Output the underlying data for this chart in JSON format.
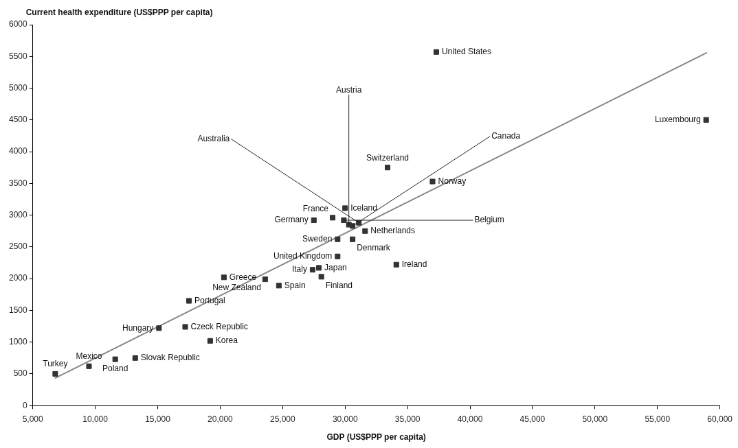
{
  "chart_data": {
    "type": "scatter",
    "xlabel": "GDP (US$PPP per capita)",
    "ylabel": "Current health expenditure (US$PPP per capita)",
    "xlim": [
      5000,
      60000
    ],
    "ylim": [
      0,
      6000
    ],
    "xticks": [
      {
        "value": 5000,
        "label": "5,000"
      },
      {
        "value": 10000,
        "label": "10,000"
      },
      {
        "value": 15000,
        "label": "15,000"
      },
      {
        "value": 20000,
        "label": "20,000"
      },
      {
        "value": 25000,
        "label": "25,000"
      },
      {
        "value": 30000,
        "label": "30,000"
      },
      {
        "value": 35000,
        "label": "35,000"
      },
      {
        "value": 40000,
        "label": "40,000"
      },
      {
        "value": 45000,
        "label": "45,000"
      },
      {
        "value": 50000,
        "label": "50,000"
      },
      {
        "value": 55000,
        "label": "55,000"
      },
      {
        "value": 60000,
        "label": "60,000"
      }
    ],
    "yticks": [
      0,
      500,
      1000,
      1500,
      2000,
      2500,
      3000,
      3500,
      4000,
      4500,
      5000,
      5500,
      6000
    ],
    "grid": false,
    "legend": false,
    "series": [
      {
        "type": "scatter",
        "marker": "square",
        "color": "#333333",
        "x": [
          6800,
          9500,
          11600,
          13200,
          15100,
          17200,
          19200,
          17500,
          20300,
          23600,
          24700,
          27400,
          27900,
          28100,
          29400,
          34100,
          29400,
          30600,
          31600,
          27500,
          29000,
          30000,
          29900,
          30300,
          30600,
          31100,
          33400,
          37000,
          37300,
          58900
        ],
        "values": [
          500,
          620,
          730,
          750,
          1220,
          1240,
          1020,
          1650,
          2020,
          1990,
          1890,
          2140,
          2170,
          2030,
          2350,
          2220,
          2620,
          2620,
          2750,
          2920,
          2960,
          3110,
          2920,
          2850,
          2830,
          2880,
          3750,
          3530,
          5570,
          4500
        ]
      },
      {
        "type": "line",
        "color": "#888888",
        "x": [
          6760,
          58960
        ],
        "values": [
          430,
          5560
        ]
      }
    ],
    "annotations": [
      {
        "text": "Turkey",
        "x": 6800,
        "y": 500
      },
      {
        "text": "Mexico",
        "x": 9500,
        "y": 620
      },
      {
        "text": "Poland",
        "x": 11600,
        "y": 730
      },
      {
        "text": "Slovak Republic",
        "x": 13200,
        "y": 750
      },
      {
        "text": "Hungary",
        "x": 15100,
        "y": 1220
      },
      {
        "text": "Czeck Republic",
        "x": 17200,
        "y": 1240
      },
      {
        "text": "Korea",
        "x": 19200,
        "y": 1020
      },
      {
        "text": "Portugal",
        "x": 17500,
        "y": 1650
      },
      {
        "text": "Greece",
        "x": 20300,
        "y": 2020
      },
      {
        "text": "New Zealand",
        "x": 23600,
        "y": 1990
      },
      {
        "text": "Spain",
        "x": 24700,
        "y": 1890
      },
      {
        "text": "Italy",
        "x": 27400,
        "y": 2140
      },
      {
        "text": "Japan",
        "x": 27900,
        "y": 2170
      },
      {
        "text": "Finland",
        "x": 28100,
        "y": 2030
      },
      {
        "text": "United Kingdom",
        "x": 29400,
        "y": 2350
      },
      {
        "text": "Ireland",
        "x": 34100,
        "y": 2220
      },
      {
        "text": "Sweden",
        "x": 29400,
        "y": 2620
      },
      {
        "text": "Denmark",
        "x": 30600,
        "y": 2620
      },
      {
        "text": "Netherlands",
        "x": 31600,
        "y": 2750
      },
      {
        "text": "Germany",
        "x": 27500,
        "y": 2920
      },
      {
        "text": "France",
        "x": 29000,
        "y": 2960
      },
      {
        "text": "Iceland",
        "x": 30000,
        "y": 3110
      },
      {
        "text": "Belgium",
        "x": 29900,
        "y": 2920
      },
      {
        "text": "Austria",
        "x": 30300,
        "y": 2850
      },
      {
        "text": "Canada",
        "x": 30600,
        "y": 2830
      },
      {
        "text": "Australia",
        "x": 31100,
        "y": 2880
      },
      {
        "text": "Switzerland",
        "x": 33400,
        "y": 3750
      },
      {
        "text": "Norway",
        "x": 37000,
        "y": 3530
      },
      {
        "text": "United States",
        "x": 37300,
        "y": 5570
      },
      {
        "text": "Luxembourg",
        "x": 58900,
        "y": 4500
      }
    ]
  }
}
